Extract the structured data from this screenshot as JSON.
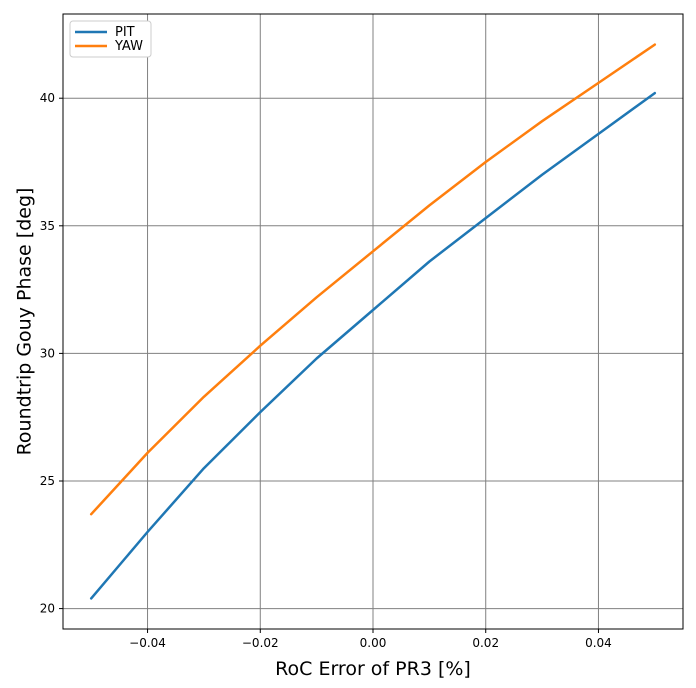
{
  "chart_data": {
    "type": "line",
    "title": "",
    "xlabel": "RoC Error of PR3 [%]",
    "ylabel": "Roundtrip Gouy Phase [deg]",
    "xlim": [
      -0.055,
      0.055
    ],
    "ylim": [
      19.2,
      43.3
    ],
    "grid": true,
    "legend_position": "top-left",
    "x_ticks": [
      -0.04,
      -0.02,
      0.0,
      0.02,
      0.04
    ],
    "x_tick_labels": [
      "−0.04",
      "−0.02",
      "0.00",
      "0.02",
      "0.04"
    ],
    "y_ticks": [
      20,
      25,
      30,
      35,
      40
    ],
    "y_tick_labels": [
      "20",
      "25",
      "30",
      "35",
      "40"
    ],
    "x": [
      -0.05,
      -0.04,
      -0.03,
      -0.02,
      -0.01,
      0.0,
      0.01,
      0.02,
      0.03,
      0.04,
      0.05
    ],
    "series": [
      {
        "name": "PIT",
        "color": "#1f77b4",
        "values": [
          20.4,
          23.0,
          25.5,
          27.7,
          29.8,
          31.7,
          33.6,
          35.3,
          37.0,
          38.6,
          40.2
        ]
      },
      {
        "name": "YAW",
        "color": "#ff7f0e",
        "values": [
          23.7,
          26.1,
          28.3,
          30.3,
          32.2,
          34.0,
          35.8,
          37.5,
          39.1,
          40.6,
          42.1
        ]
      }
    ]
  }
}
